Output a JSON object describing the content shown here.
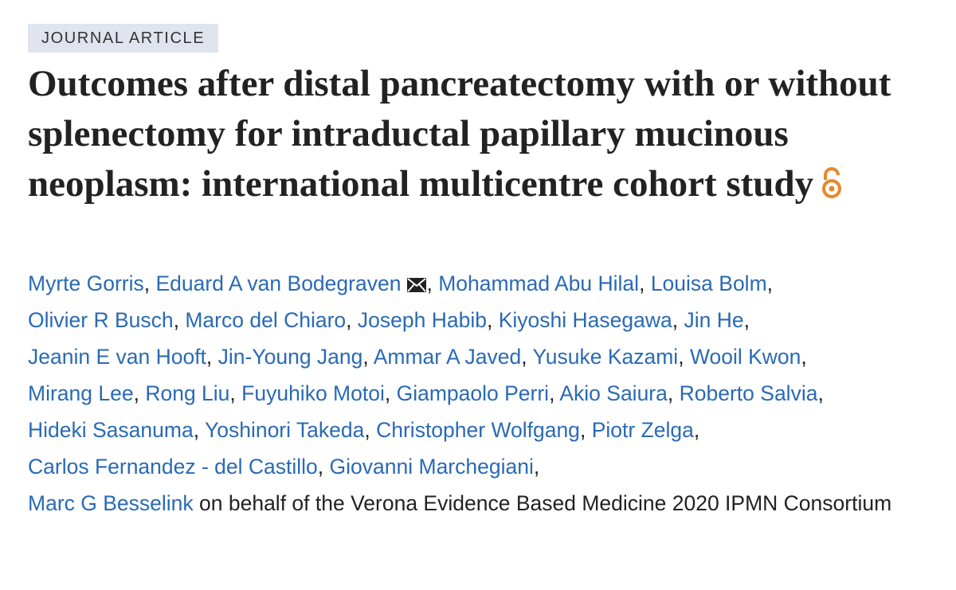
{
  "label": "JOURNAL ARTICLE",
  "title": "Outcomes after distal pancreatectomy with or without splenectomy for intraductal papillary mucinous neoplasm: international multicentre cohort study",
  "separator": ",",
  "author_lines": [
    [
      "Myrte Gorris",
      "Eduard A van Bodegraven",
      "Mohammad Abu Hilal",
      "Louisa Bolm"
    ],
    [
      "Olivier R Busch",
      "Marco del Chiaro",
      "Joseph Habib",
      "Kiyoshi Hasegawa",
      "Jin He"
    ],
    [
      "Jeanin E van Hooft",
      "Jin-Young Jang",
      "Ammar A Javed",
      "Yusuke Kazami",
      "Wooil Kwon"
    ],
    [
      "Mirang Lee",
      "Rong Liu",
      "Fuyuhiko Motoi",
      "Giampaolo Perri",
      "Akio Saiura",
      "Roberto Salvia"
    ],
    [
      "Hideki Sasanuma",
      "Yoshinori Takeda",
      "Christopher Wolfgang",
      "Piotr Zelga"
    ],
    [
      "Carlos Fernandez - del Castillo",
      "Giovanni Marchegiani"
    ],
    [
      "Marc G Besselink"
    ]
  ],
  "group_text": "on behalf of the Verona Evidence Based Medicine 2020 IPMN Consortium"
}
